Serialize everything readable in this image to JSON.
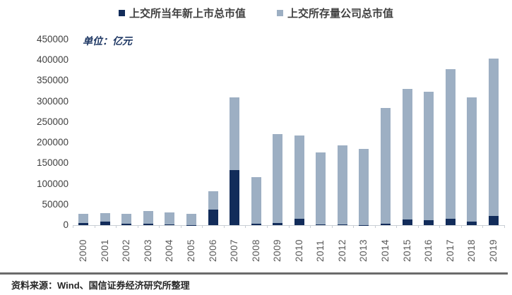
{
  "page": {
    "source_note": "资料来源：Wind、国信证券经济研究所整理"
  },
  "chart_data": {
    "type": "bar",
    "stacked": true,
    "title": "",
    "unit_label": "单位：亿元",
    "xlabel": "",
    "ylabel": "",
    "legend_position": "top",
    "grid": false,
    "ylim": [
      0,
      450000
    ],
    "ytick_interval": 50000,
    "yticks": [
      450000,
      400000,
      350000,
      300000,
      250000,
      200000,
      150000,
      100000,
      50000,
      0
    ],
    "categories": [
      "2000",
      "2001",
      "2002",
      "2003",
      "2004",
      "2005",
      "2006",
      "2007",
      "2008",
      "2009",
      "2010",
      "2011",
      "2012",
      "2013",
      "2014",
      "2015",
      "2016",
      "2017",
      "2018",
      "2019"
    ],
    "series": [
      {
        "name": "上交所当年新上市总市值",
        "color": "#122c5a",
        "values": [
          5000,
          9000,
          3000,
          3000,
          2500,
          500,
          37000,
          133000,
          4000,
          5000,
          16000,
          2000,
          2000,
          500,
          3000,
          13000,
          12000,
          15000,
          8000,
          22000
        ]
      },
      {
        "name": "上交所存量公司总市值",
        "color": "#9dafc3",
        "values": [
          22000,
          20000,
          24000,
          31000,
          27500,
          27500,
          45000,
          177000,
          113000,
          216000,
          202000,
          175000,
          192000,
          184000,
          281000,
          317000,
          312000,
          363000,
          302000,
          382000
        ]
      }
    ],
    "totals": [
      27000,
      29000,
      27000,
      34000,
      30000,
      28000,
      82000,
      310000,
      117000,
      221000,
      218000,
      177000,
      194000,
      184500,
      284000,
      330000,
      324000,
      378000,
      310000,
      404000
    ]
  }
}
